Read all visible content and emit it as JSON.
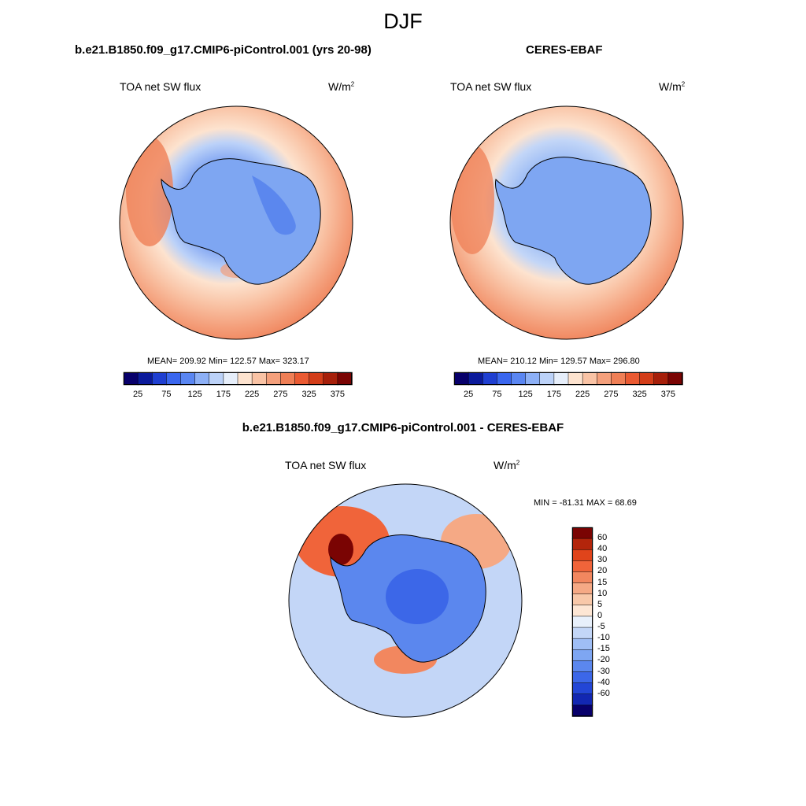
{
  "figure": {
    "season": "DJF"
  },
  "panels": {
    "model": {
      "title": "b.e21.B1850.f09_g17.CMIP6-piControl.001 (yrs 20-98)",
      "field": "TOA net SW flux",
      "units_base": "W/m",
      "units_exp": "2",
      "stats": "MEAN= 209.92  Min= 122.57  Max= 323.17"
    },
    "obs": {
      "title": "CERES-EBAF",
      "field": "TOA net SW flux",
      "units_base": "W/m",
      "units_exp": "2",
      "stats": "MEAN= 210.12  Min= 129.57  Max= 296.80"
    },
    "diff": {
      "title": "b.e21.B1850.f09_g17.CMIP6-piControl.001 - CERES-EBAF",
      "field": "TOA net SW flux",
      "units_base": "W/m",
      "units_exp": "2",
      "stats": "MIN = -81.31 MAX =  68.69"
    }
  },
  "colorbar_main": {
    "orientation": "horizontal",
    "colors": [
      "#08006b",
      "#0b1a9b",
      "#1f3fd1",
      "#3a66ee",
      "#5a86f2",
      "#8db0f6",
      "#bcd2f8",
      "#e6eefa",
      "#fde3cf",
      "#f9c3a5",
      "#f4a07c",
      "#ef7f56",
      "#ea5a32",
      "#d33d19",
      "#a61f0a",
      "#7a0403"
    ],
    "labels": [
      "25",
      "75",
      "125",
      "175",
      "225",
      "275",
      "325",
      "375"
    ]
  },
  "colorbar_diff": {
    "orientation": "vertical",
    "colors": [
      "#7a0403",
      "#b3250b",
      "#e0441b",
      "#f0643a",
      "#f2875f",
      "#f5a985",
      "#f8c8a9",
      "#fde6d4",
      "#e8f0fb",
      "#c3d6f7",
      "#9fbef5",
      "#7ea6f2",
      "#5b87ee",
      "#3c67e8",
      "#2346d6",
      "#1227b2",
      "#08006b"
    ],
    "labels": [
      "60",
      "40",
      "30",
      "20",
      "15",
      "10",
      "5",
      "0",
      "-5",
      "-10",
      "-15",
      "-20",
      "-30",
      "-40",
      "-60"
    ]
  },
  "chart_data": [
    {
      "type": "map",
      "projection": "polar stereographic (south pole)",
      "title": "b.e21.B1850.f09_g17.CMIP6-piControl.001 (yrs 20-98)",
      "variable": "TOA net SW flux",
      "units": "W/m2",
      "mean": 209.92,
      "min": 122.57,
      "max": 323.17,
      "contour_levels": [
        25,
        50,
        75,
        100,
        125,
        150,
        175,
        200,
        225,
        250,
        275,
        300,
        325,
        350,
        375
      ]
    },
    {
      "type": "map",
      "projection": "polar stereographic (south pole)",
      "title": "CERES-EBAF",
      "variable": "TOA net SW flux",
      "units": "W/m2",
      "mean": 210.12,
      "min": 129.57,
      "max": 296.8,
      "contour_levels": [
        25,
        50,
        75,
        100,
        125,
        150,
        175,
        200,
        225,
        250,
        275,
        300,
        325,
        350,
        375
      ]
    },
    {
      "type": "map",
      "projection": "polar stereographic (south pole)",
      "title": "b.e21.B1850.f09_g17.CMIP6-piControl.001 - CERES-EBAF",
      "variable": "TOA net SW flux",
      "units": "W/m2",
      "min": -81.31,
      "max": 68.69,
      "contour_levels": [
        -60,
        -40,
        -30,
        -20,
        -15,
        -10,
        -5,
        0,
        5,
        10,
        15,
        20,
        30,
        40,
        60
      ]
    }
  ]
}
